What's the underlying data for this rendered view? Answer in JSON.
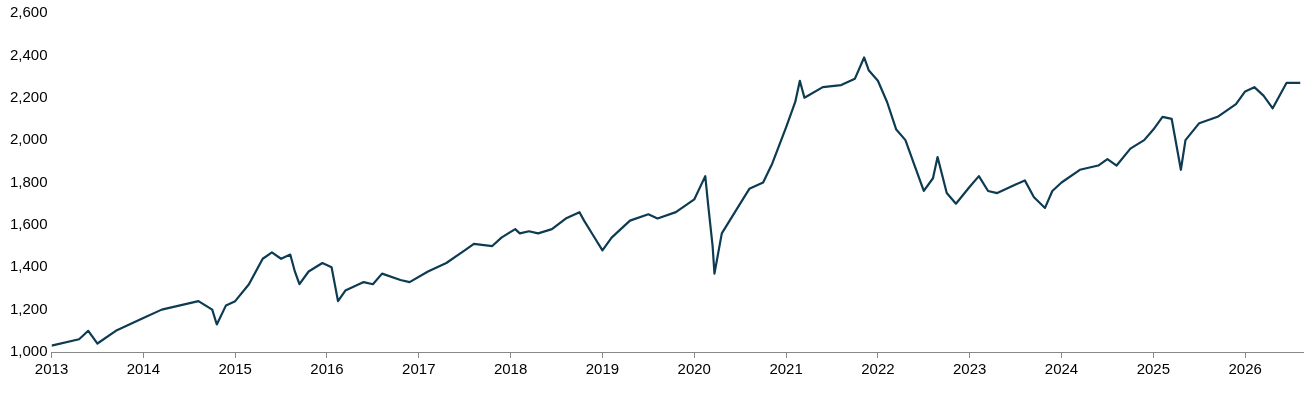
{
  "chart_data": {
    "type": "line",
    "xlim": [
      2013,
      2026.63
    ],
    "xticks": [
      2013,
      2014,
      2015,
      2016,
      2017,
      2018,
      2019,
      2020,
      2021,
      2022,
      2023,
      2024,
      2025,
      2026
    ],
    "ylim": [
      1000,
      2600
    ],
    "yticks": [
      {
        "value": 1000,
        "label": "1,000"
      },
      {
        "value": 1200,
        "label": "1,200"
      },
      {
        "value": 1400,
        "label": "1,400"
      },
      {
        "value": 1600,
        "label": "1,600"
      },
      {
        "value": 1800,
        "label": "1,800"
      },
      {
        "value": 2000,
        "label": "2,000"
      },
      {
        "value": 2200,
        "label": "2,200"
      },
      {
        "value": 2400,
        "label": "2,400"
      },
      {
        "value": 2600,
        "label": "2,600"
      }
    ],
    "grid": false,
    "legend": false,
    "marker": "none",
    "line_style": "solid",
    "series": [
      {
        "color": "#0d3b52",
        "x": [
          2013.0,
          2013.3,
          2013.4,
          2013.5,
          2013.7,
          2014.0,
          2014.2,
          2014.4,
          2014.6,
          2014.75,
          2014.8,
          2014.9,
          2015.0,
          2015.15,
          2015.3,
          2015.4,
          2015.5,
          2015.6,
          2015.65,
          2015.7,
          2015.8,
          2015.95,
          2016.05,
          2016.12,
          2016.2,
          2016.4,
          2016.5,
          2016.6,
          2016.8,
          2016.9,
          2017.1,
          2017.3,
          2017.5,
          2017.6,
          2017.8,
          2017.9,
          2018.05,
          2018.1,
          2018.2,
          2018.3,
          2018.45,
          2018.6,
          2018.75,
          2018.8,
          2018.9,
          2019.0,
          2019.1,
          2019.3,
          2019.5,
          2019.6,
          2019.8,
          2020.0,
          2020.12,
          2020.15,
          2020.2,
          2020.22,
          2020.3,
          2020.5,
          2020.6,
          2020.75,
          2020.85,
          2021.0,
          2021.1,
          2021.15,
          2021.2,
          2021.4,
          2021.6,
          2021.75,
          2021.85,
          2021.9,
          2022.0,
          2022.1,
          2022.2,
          2022.3,
          2022.4,
          2022.5,
          2022.6,
          2022.65,
          2022.75,
          2022.85,
          2023.0,
          2023.1,
          2023.2,
          2023.3,
          2023.5,
          2023.6,
          2023.7,
          2023.82,
          2023.9,
          2024.0,
          2024.2,
          2024.4,
          2024.5,
          2024.6,
          2024.75,
          2024.9,
          2025.0,
          2025.1,
          2025.2,
          2025.3,
          2025.35,
          2025.5,
          2025.7,
          2025.9,
          2026.0,
          2026.1,
          2026.2,
          2026.3,
          2026.45,
          2026.6
        ],
        "values": [
          1030,
          1060,
          1100,
          1040,
          1100,
          1160,
          1200,
          1220,
          1240,
          1200,
          1130,
          1220,
          1240,
          1320,
          1440,
          1470,
          1440,
          1460,
          1380,
          1320,
          1380,
          1420,
          1400,
          1240,
          1290,
          1330,
          1320,
          1370,
          1340,
          1330,
          1380,
          1420,
          1480,
          1510,
          1500,
          1540,
          1580,
          1560,
          1570,
          1560,
          1580,
          1630,
          1660,
          1620,
          1550,
          1480,
          1540,
          1620,
          1650,
          1630,
          1660,
          1720,
          1830,
          1700,
          1500,
          1370,
          1560,
          1700,
          1770,
          1800,
          1890,
          2060,
          2180,
          2280,
          2200,
          2250,
          2260,
          2290,
          2390,
          2330,
          2280,
          2180,
          2050,
          2000,
          1880,
          1760,
          1820,
          1920,
          1750,
          1700,
          1780,
          1830,
          1760,
          1750,
          1790,
          1810,
          1730,
          1680,
          1760,
          1800,
          1860,
          1880,
          1910,
          1880,
          1960,
          2000,
          2050,
          2110,
          2100,
          1860,
          2000,
          2080,
          2110,
          2170,
          2230,
          2250,
          2210,
          2150,
          2270,
          2270
        ]
      }
    ]
  }
}
